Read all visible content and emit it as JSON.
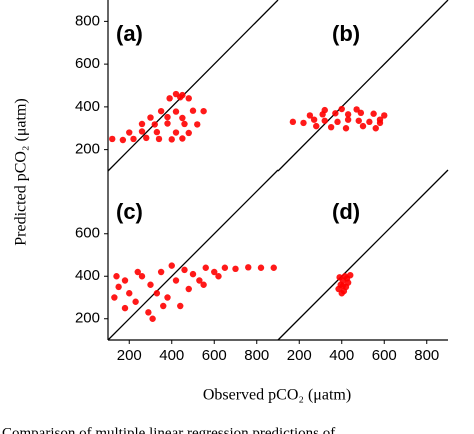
{
  "x_label": "Observed pCO₂ (μatm)",
  "y_label": "Predicted pCO₂ (μatm)",
  "caption": "Comparison of multiple linear regression predictions of",
  "chart_data": [
    {
      "type": "scatter",
      "label": "(a)",
      "xlim": [
        100,
        900
      ],
      "ylim": [
        100,
        900
      ],
      "yticks": [
        200,
        400,
        600,
        800
      ],
      "series": [
        {
          "color": "#ff0000",
          "x": [
            120,
            170,
            220,
            280,
            340,
            400,
            450,
            200,
            260,
            330,
            420,
            480,
            260,
            320,
            380,
            460,
            520,
            300,
            380,
            450,
            350,
            420,
            500,
            550,
            390,
            440,
            480,
            420,
            450
          ],
          "values": [
            250,
            245,
            250,
            255,
            250,
            248,
            252,
            280,
            285,
            282,
            280,
            278,
            320,
            318,
            322,
            320,
            318,
            350,
            352,
            348,
            380,
            378,
            382,
            380,
            440,
            445,
            440,
            460,
            455
          ]
        }
      ]
    },
    {
      "type": "scatter",
      "label": "(b)",
      "xlim": [
        100,
        900
      ],
      "ylim": [
        100,
        900
      ],
      "series": [
        {
          "color": "#ff0000",
          "x": [
            170,
            220,
            270,
            320,
            380,
            430,
            480,
            530,
            580,
            250,
            310,
            370,
            430,
            490,
            550,
            600,
            280,
            350,
            420,
            500,
            560,
            320,
            400,
            470,
            580
          ],
          "values": [
            330,
            325,
            340,
            335,
            330,
            340,
            335,
            330,
            325,
            360,
            365,
            370,
            365,
            372,
            368,
            360,
            310,
            305,
            300,
            310,
            300,
            385,
            390,
            388,
            340
          ]
        }
      ]
    },
    {
      "type": "scatter",
      "label": "(c)",
      "xlim": [
        100,
        900
      ],
      "ylim": [
        100,
        900
      ],
      "xticks": [
        200,
        400,
        600,
        800
      ],
      "yticks": [
        200,
        400,
        600
      ],
      "series": [
        {
          "color": "#ff0000",
          "x": [
            130,
            150,
            180,
            200,
            230,
            260,
            290,
            300,
            330,
            350,
            380,
            400,
            420,
            440,
            460,
            480,
            500,
            530,
            560,
            600,
            650,
            700,
            760,
            820,
            880,
            240,
            310,
            360,
            180,
            140,
            550,
            620
          ],
          "values": [
            300,
            350,
            380,
            320,
            280,
            400,
            230,
            360,
            320,
            420,
            300,
            450,
            380,
            260,
            430,
            340,
            410,
            380,
            440,
            420,
            440,
            435,
            442,
            440,
            440,
            420,
            200,
            260,
            250,
            400,
            360,
            400
          ]
        }
      ]
    },
    {
      "type": "scatter",
      "label": "(d)",
      "xlim": [
        100,
        900
      ],
      "ylim": [
        100,
        900
      ],
      "xticks": [
        200,
        400,
        600,
        800
      ],
      "series": [
        {
          "color": "#ff0000",
          "x": [
            385,
            395,
            405,
            415,
            425,
            410,
            400,
            430,
            390,
            420,
            440,
            405
          ],
          "values": [
            340,
            360,
            380,
            400,
            390,
            330,
            320,
            370,
            395,
            350,
            405,
            355
          ]
        }
      ]
    }
  ]
}
